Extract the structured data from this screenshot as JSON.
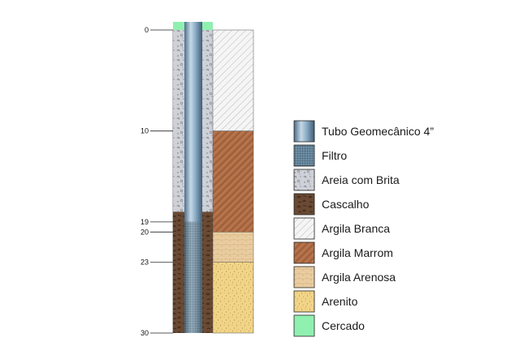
{
  "depth_scale": {
    "ticks": [
      {
        "depth": 0,
        "label": "0"
      },
      {
        "depth": 10,
        "label": "10"
      },
      {
        "depth": 19,
        "label": "19"
      },
      {
        "depth": 20,
        "label": "20"
      },
      {
        "depth": 23,
        "label": "23"
      },
      {
        "depth": 30,
        "label": "30"
      }
    ]
  },
  "well": {
    "annulus": [
      {
        "from": 0,
        "to": 18,
        "material": "areia_brita"
      },
      {
        "from": 18,
        "to": 30,
        "material": "cascalho"
      }
    ],
    "tube": [
      {
        "from": 0,
        "to": 19,
        "material": "tubo"
      },
      {
        "from": 19,
        "to": 30,
        "material": "filtro"
      }
    ],
    "collar_material": "cercado"
  },
  "lithology": [
    {
      "from": 0,
      "to": 10,
      "material": "argila_branca"
    },
    {
      "from": 10,
      "to": 20,
      "material": "argila_marrom"
    },
    {
      "from": 20,
      "to": 23,
      "material": "argila_arenosa"
    },
    {
      "from": 23,
      "to": 30,
      "material": "arenito"
    }
  ],
  "legend": [
    {
      "id": "tubo",
      "label": "Tubo Geomecânico 4”",
      "color": "#7d9bb4"
    },
    {
      "id": "filtro",
      "label": "Filtro",
      "color": "#5d7e93"
    },
    {
      "id": "areia_brita",
      "label": "Areia com Brita",
      "color": "#cfd1d8"
    },
    {
      "id": "cascalho",
      "label": "Cascalho",
      "color": "#5a3d28"
    },
    {
      "id": "argila_branca",
      "label": "Argila Branca",
      "color": "#f3f3f3"
    },
    {
      "id": "argila_marrom",
      "label": "Argila Marrom",
      "color": "#b06c44"
    },
    {
      "id": "argila_arenosa",
      "label": "Argila Arenosa",
      "color": "#e8c89a"
    },
    {
      "id": "arenito",
      "label": "Arenito",
      "color": "#efd27e"
    },
    {
      "id": "cercado",
      "label": "Cercado",
      "color": "#8ff0b0"
    }
  ]
}
